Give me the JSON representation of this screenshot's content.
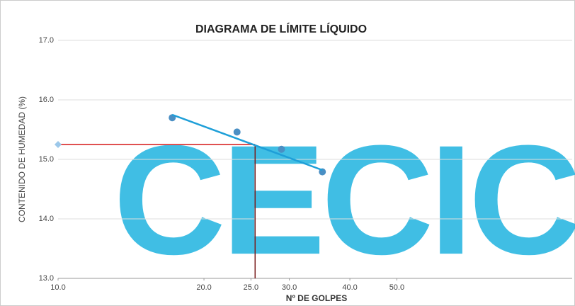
{
  "chart_data": {
    "type": "scatter",
    "title": "DIAGRAMA DE LÍMITE LÍQUIDO",
    "x_label": "Nº DE GOLPES",
    "y_label": "CONTENIDO DE HUMEDAD (%)",
    "watermark": "CECIC",
    "log_x": true,
    "grid": true,
    "xlim": [
      10,
      115
    ],
    "ylim": [
      13,
      17
    ],
    "xticks": [
      {
        "value": 10,
        "label": "10.0"
      },
      {
        "value": 20,
        "label": "20.0"
      },
      {
        "value": 25,
        "label": "25.0"
      },
      {
        "value": 30,
        "label": "30.0"
      },
      {
        "value": 40,
        "label": "40.0"
      },
      {
        "value": 50,
        "label": "50.0"
      }
    ],
    "yticks": [
      {
        "value": 13,
        "label": "13.0"
      },
      {
        "value": 14,
        "label": "14.0"
      },
      {
        "value": 15,
        "label": "15.0"
      },
      {
        "value": 16,
        "label": "16.0"
      },
      {
        "value": 17,
        "label": "17.0"
      }
    ],
    "series": [
      {
        "kind": "points",
        "color": "#4a8fc4",
        "x": [
          17.2,
          23.4,
          28.9,
          35.1
        ],
        "values": [
          15.7,
          15.46,
          15.17,
          14.79
        ]
      },
      {
        "kind": "trend",
        "color": "#1e9fd8",
        "x": [
          17.2,
          35.1
        ],
        "values": [
          15.75,
          14.82
        ]
      }
    ],
    "liquid_limit": {
      "x": 25.5,
      "y": 15.25,
      "h_color": "#e05050",
      "v_color": "#7a2020"
    }
  }
}
